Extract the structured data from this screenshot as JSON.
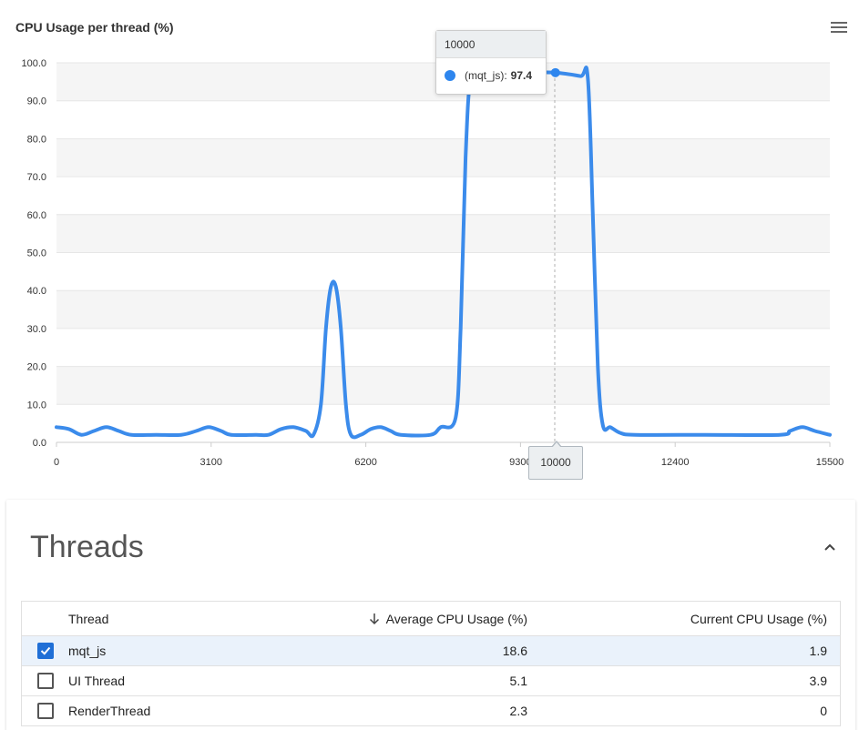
{
  "chart": {
    "title": "CPU Usage per thread (%)",
    "menu_icon": "hamburger-menu-icon",
    "accent_color": "#3b8beb",
    "tooltip": {
      "x_label": "10000",
      "series_label": "(mqt_js):",
      "value": "97.4"
    },
    "crosshair_label": "10000"
  },
  "chart_data": {
    "type": "line",
    "x_ticks": [
      "0",
      "3100",
      "6200",
      "9300",
      "12400",
      "15500"
    ],
    "y_ticks": [
      "0.0",
      "10.0",
      "20.0",
      "30.0",
      "40.0",
      "50.0",
      "60.0",
      "70.0",
      "80.0",
      "90.0",
      "100.0"
    ],
    "xlim": [
      0,
      15500
    ],
    "ylim": [
      0,
      100
    ],
    "grid": "horizontal-bands",
    "legend": "none",
    "series": [
      {
        "values": [
          [
            0,
            4
          ],
          [
            250,
            3.5
          ],
          [
            500,
            2
          ],
          [
            750,
            3
          ],
          [
            1000,
            4
          ],
          [
            1250,
            3
          ],
          [
            1500,
            2
          ],
          [
            2000,
            2
          ],
          [
            2500,
            2
          ],
          [
            2800,
            3
          ],
          [
            3050,
            4
          ],
          [
            3300,
            3
          ],
          [
            3500,
            2
          ],
          [
            4000,
            2
          ],
          [
            4250,
            2
          ],
          [
            4500,
            3.5
          ],
          [
            4750,
            4
          ],
          [
            5000,
            3
          ],
          [
            5150,
            2
          ],
          [
            5300,
            10
          ],
          [
            5400,
            30
          ],
          [
            5500,
            41
          ],
          [
            5600,
            41
          ],
          [
            5700,
            30
          ],
          [
            5800,
            10
          ],
          [
            5900,
            2
          ],
          [
            6100,
            2
          ],
          [
            6300,
            3.5
          ],
          [
            6500,
            4
          ],
          [
            6700,
            3
          ],
          [
            6900,
            2
          ],
          [
            7500,
            2
          ],
          [
            7700,
            4
          ],
          [
            8000,
            6.5
          ],
          [
            8100,
            30
          ],
          [
            8200,
            75
          ],
          [
            8300,
            96
          ],
          [
            8500,
            97.4
          ],
          [
            9000,
            97.4
          ],
          [
            9500,
            97.4
          ],
          [
            10000,
            97.4
          ],
          [
            10500,
            96.5
          ],
          [
            10650,
            96
          ],
          [
            10750,
            60
          ],
          [
            10850,
            20
          ],
          [
            10950,
            4.5
          ],
          [
            11100,
            4
          ],
          [
            11300,
            2.5
          ],
          [
            11600,
            2
          ],
          [
            13000,
            2
          ],
          [
            14500,
            2
          ],
          [
            14700,
            3
          ],
          [
            14950,
            4
          ],
          [
            15200,
            3
          ],
          [
            15500,
            2
          ]
        ]
      }
    ]
  },
  "threads": {
    "title": "Threads",
    "collapse_icon": "chevron-up-icon",
    "sort_icon": "arrow-down-icon",
    "columns": {
      "thread": "Thread",
      "avg": "Average CPU Usage (%)",
      "current": "Current CPU Usage (%)"
    },
    "rows": [
      {
        "name": "mqt_js",
        "avg": "18.6",
        "current": "1.9",
        "checked": true
      },
      {
        "name": "UI Thread",
        "avg": "5.1",
        "current": "3.9",
        "checked": false
      },
      {
        "name": "RenderThread",
        "avg": "2.3",
        "current": "0",
        "checked": false
      }
    ]
  }
}
